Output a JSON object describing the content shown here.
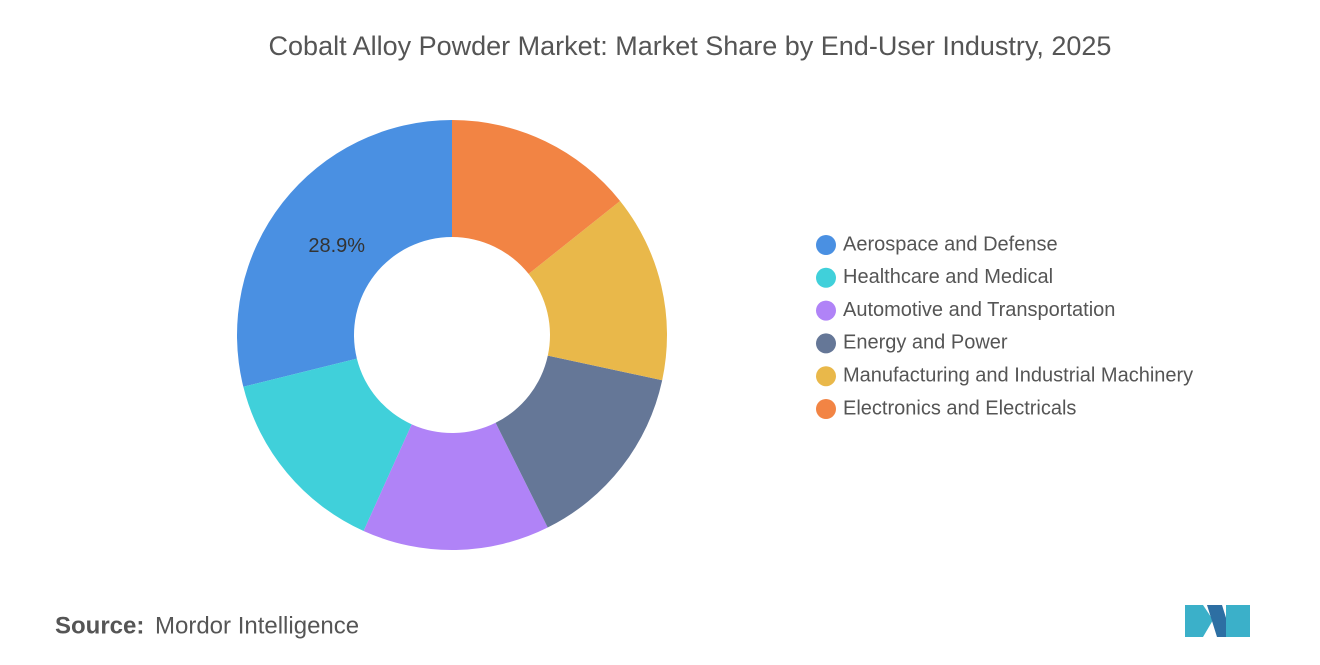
{
  "chart_data": {
    "type": "donut",
    "title": "Cobalt Alloy Powder Market: Market Share by End-User Industry, 2025",
    "categories": [
      "Aerospace and Defense",
      "Healthcare and Medical",
      "Automotive and Transportation",
      "Energy and Power",
      "Manufacturing and Industrial Machinery",
      "Electronics and Electricals"
    ],
    "values": [
      28.9,
      14.4,
      14.1,
      14.3,
      14.1,
      14.3
    ],
    "value_labels": [
      "28.9%",
      null,
      null,
      null,
      null,
      null
    ],
    "colors": [
      "#4a90e2",
      "#40d0da",
      "#b083f7",
      "#657797",
      "#e9b84a",
      "#f28444"
    ],
    "legend": "right",
    "source_label": "Source:",
    "source": "Mordor Intelligence"
  }
}
